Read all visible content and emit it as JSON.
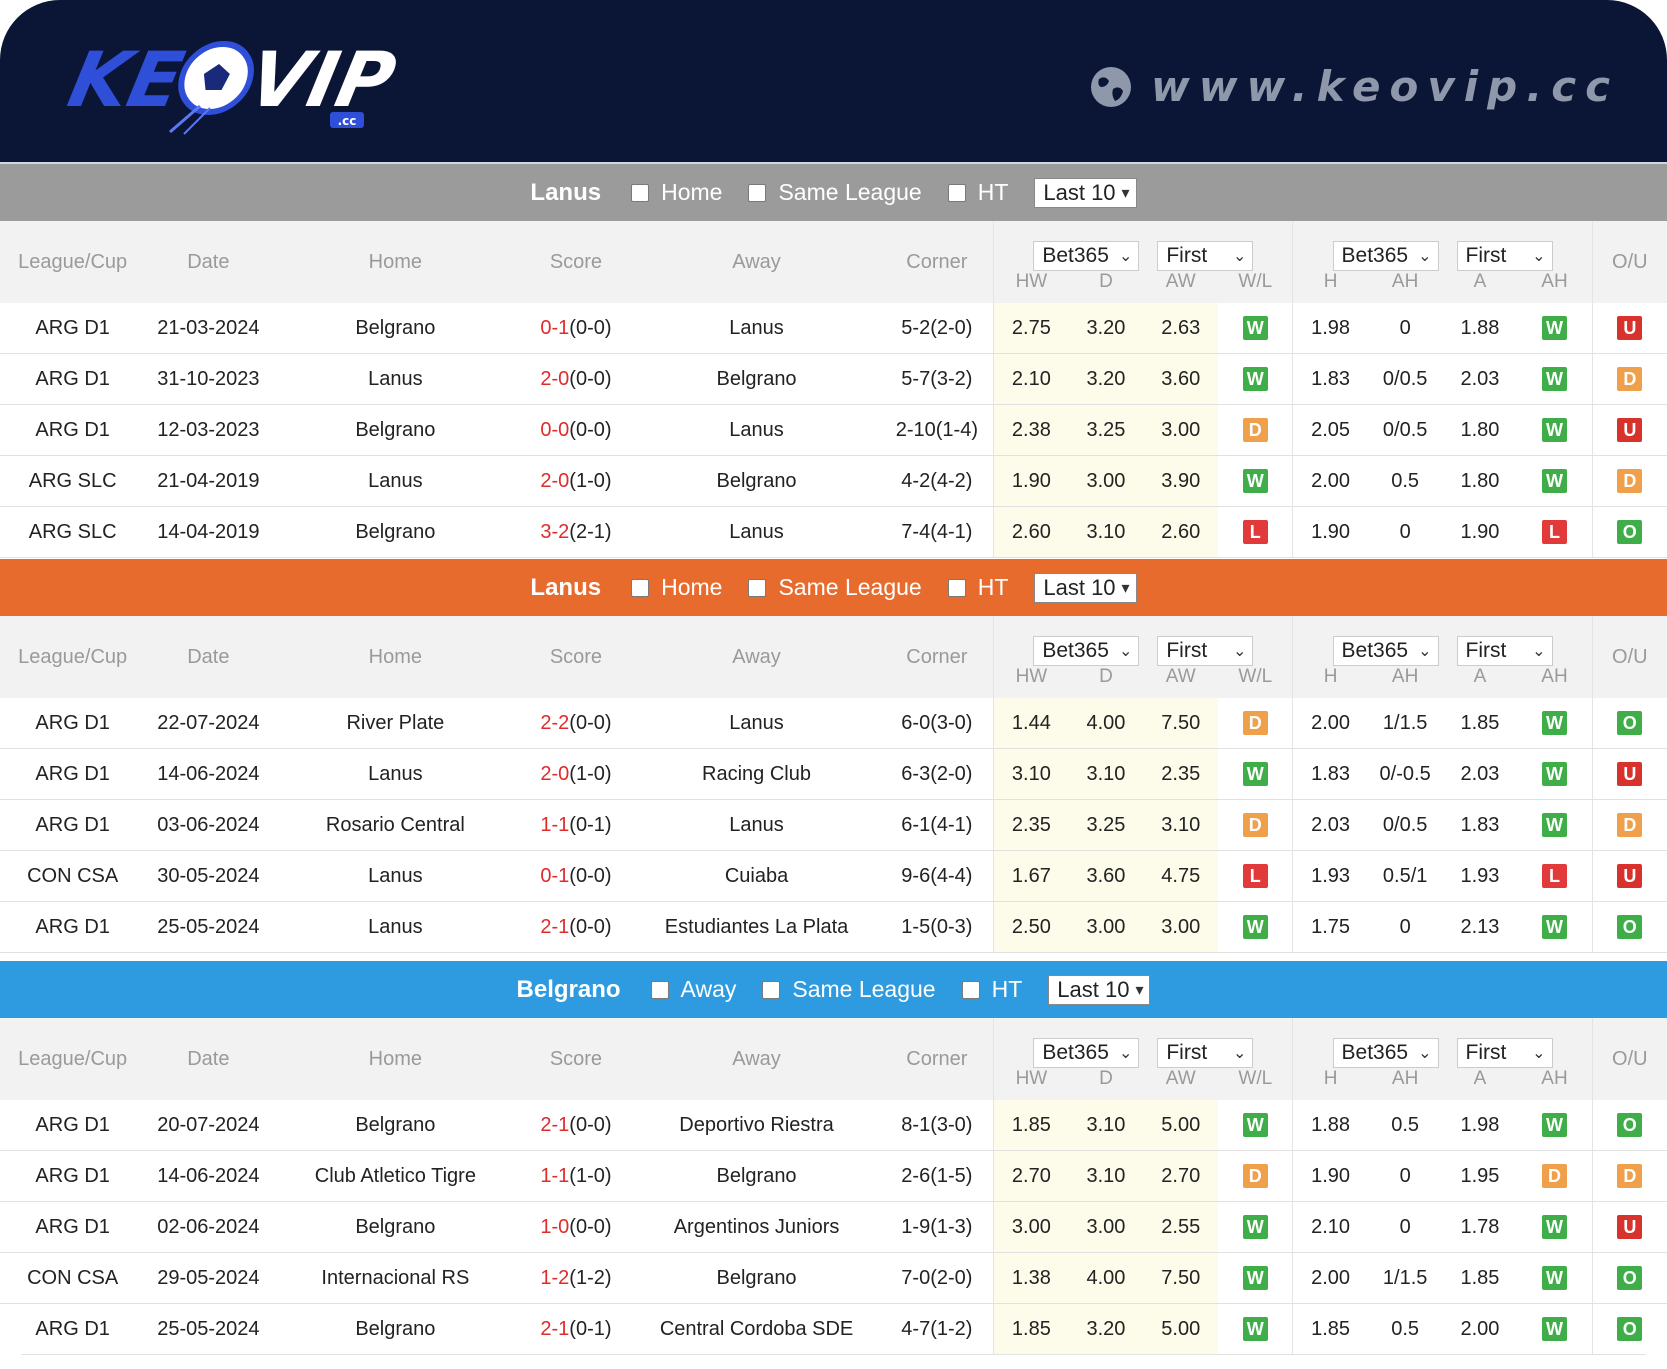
{
  "banner": {
    "logo_text": "KEOVIP",
    "logo_sub": ".cc",
    "site_url": "www.keovip.cc"
  },
  "columns": {
    "league": "League/Cup",
    "date": "Date",
    "home": "Home",
    "score": "Score",
    "away": "Away",
    "corner": "Corner",
    "hw": "HW",
    "d": "D",
    "aw": "AW",
    "wl": "W/L",
    "h": "H",
    "ah": "AH",
    "a": "A",
    "ah2": "AH",
    "ou": "O/U"
  },
  "odds_selects": {
    "bookmaker_1": "Bet365",
    "period_1": "First",
    "bookmaker_2": "Bet365",
    "period_2": "First"
  },
  "sections": [
    {
      "team": "Lanus",
      "filters": [
        "Home",
        "Same League",
        "HT"
      ],
      "last": "Last 10",
      "rows": [
        {
          "league": "ARG D1",
          "date": "21-03-2024",
          "home": "Belgrano",
          "score_ft": "0-1",
          "score_ht": "(0-0)",
          "away": "Lanus",
          "corner": "5-2(2-0)",
          "hw": "2.75",
          "d": "3.20",
          "aw": "2.63",
          "wl": "W",
          "h": "1.98",
          "ah": "0",
          "a": "1.88",
          "ah_res": "W",
          "ou": "U",
          "hl": "away"
        },
        {
          "league": "ARG D1",
          "date": "31-10-2023",
          "home": "Lanus",
          "score_ft": "2-0",
          "score_ht": "(0-0)",
          "away": "Belgrano",
          "corner": "5-7(3-2)",
          "hw": "2.10",
          "d": "3.20",
          "aw": "3.60",
          "wl": "W",
          "h": "1.83",
          "ah": "0/0.5",
          "a": "2.03",
          "ah_res": "W",
          "ou": "D",
          "hl": "home"
        },
        {
          "league": "ARG D1",
          "date": "12-03-2023",
          "home": "Belgrano",
          "score_ft": "0-0",
          "score_ht": "(0-0)",
          "away": "Lanus",
          "corner": "2-10(1-4)",
          "hw": "2.38",
          "d": "3.25",
          "aw": "3.00",
          "wl": "D",
          "h": "2.05",
          "ah": "0/0.5",
          "a": "1.80",
          "ah_res": "W",
          "ou": "U",
          "hl": "away"
        },
        {
          "league": "ARG SLC",
          "date": "21-04-2019",
          "home": "Lanus",
          "score_ft": "2-0",
          "score_ht": "(1-0)",
          "away": "Belgrano",
          "corner": "4-2(4-2)",
          "hw": "1.90",
          "d": "3.00",
          "aw": "3.90",
          "wl": "W",
          "h": "2.00",
          "ah": "0.5",
          "a": "1.80",
          "ah_res": "W",
          "ou": "D",
          "hl": "home"
        },
        {
          "league": "ARG SLC",
          "date": "14-04-2019",
          "home": "Belgrano",
          "score_ft": "3-2",
          "score_ht": "(2-1)",
          "away": "Lanus",
          "corner": "7-4(4-1)",
          "hw": "2.60",
          "d": "3.10",
          "aw": "2.60",
          "wl": "L",
          "h": "1.90",
          "ah": "0",
          "a": "1.90",
          "ah_res": "L",
          "ou": "O",
          "hl": "away"
        }
      ]
    },
    {
      "team": "Lanus",
      "filters": [
        "Home",
        "Same League",
        "HT"
      ],
      "last": "Last 10",
      "rows": [
        {
          "league": "ARG D1",
          "date": "22-07-2024",
          "home": "River Plate",
          "score_ft": "2-2",
          "score_ht": "(0-0)",
          "away": "Lanus",
          "corner": "6-0(3-0)",
          "hw": "1.44",
          "d": "4.00",
          "aw": "7.50",
          "wl": "D",
          "h": "2.00",
          "ah": "1/1.5",
          "a": "1.85",
          "ah_res": "W",
          "ou": "O",
          "hl": "away"
        },
        {
          "league": "ARG D1",
          "date": "14-06-2024",
          "home": "Lanus",
          "score_ft": "2-0",
          "score_ht": "(1-0)",
          "away": "Racing Club",
          "corner": "6-3(2-0)",
          "hw": "3.10",
          "d": "3.10",
          "aw": "2.35",
          "wl": "W",
          "h": "1.83",
          "ah": "0/-0.5",
          "a": "2.03",
          "ah_res": "W",
          "ou": "U",
          "hl": "home"
        },
        {
          "league": "ARG D1",
          "date": "03-06-2024",
          "home": "Rosario Central",
          "score_ft": "1-1",
          "score_ht": "(0-1)",
          "away": "Lanus",
          "corner": "6-1(4-1)",
          "hw": "2.35",
          "d": "3.25",
          "aw": "3.10",
          "wl": "D",
          "h": "2.03",
          "ah": "0/0.5",
          "a": "1.83",
          "ah_res": "W",
          "ou": "D",
          "hl": "away"
        },
        {
          "league": "CON CSA",
          "date": "30-05-2024",
          "home": "Lanus",
          "score_ft": "0-1",
          "score_ht": "(0-0)",
          "away": "Cuiaba",
          "corner": "9-6(4-4)",
          "hw": "1.67",
          "d": "3.60",
          "aw": "4.75",
          "wl": "L",
          "h": "1.93",
          "ah": "0.5/1",
          "a": "1.93",
          "ah_res": "L",
          "ou": "U",
          "hl": "home"
        },
        {
          "league": "ARG D1",
          "date": "25-05-2024",
          "home": "Lanus",
          "score_ft": "2-1",
          "score_ht": "(0-0)",
          "away": "Estudiantes La Plata",
          "corner": "1-5(0-3)",
          "hw": "2.50",
          "d": "3.00",
          "aw": "3.00",
          "wl": "W",
          "h": "1.75",
          "ah": "0",
          "a": "2.13",
          "ah_res": "W",
          "ou": "O",
          "hl": "home"
        }
      ]
    },
    {
      "team": "Belgrano",
      "filters": [
        "Away",
        "Same League",
        "HT"
      ],
      "last": "Last 10",
      "rows": [
        {
          "league": "ARG D1",
          "date": "20-07-2024",
          "home": "Belgrano",
          "score_ft": "2-1",
          "score_ht": "(0-0)",
          "away": "Deportivo Riestra",
          "corner": "8-1(3-0)",
          "hw": "1.85",
          "d": "3.10",
          "aw": "5.00",
          "wl": "W",
          "h": "1.88",
          "ah": "0.5",
          "a": "1.98",
          "ah_res": "W",
          "ou": "O",
          "hl": "home"
        },
        {
          "league": "ARG D1",
          "date": "14-06-2024",
          "home": "Club Atletico Tigre",
          "score_ft": "1-1",
          "score_ht": "(1-0)",
          "away": "Belgrano",
          "corner": "2-6(1-5)",
          "hw": "2.70",
          "d": "3.10",
          "aw": "2.70",
          "wl": "D",
          "h": "1.90",
          "ah": "0",
          "a": "1.95",
          "ah_res": "D",
          "ou": "D",
          "hl": "away"
        },
        {
          "league": "ARG D1",
          "date": "02-06-2024",
          "home": "Belgrano",
          "score_ft": "1-0",
          "score_ht": "(0-0)",
          "away": "Argentinos Juniors",
          "corner": "1-9(1-3)",
          "hw": "3.00",
          "d": "3.00",
          "aw": "2.55",
          "wl": "W",
          "h": "2.10",
          "ah": "0",
          "a": "1.78",
          "ah_res": "W",
          "ou": "U",
          "hl": "home"
        },
        {
          "league": "CON CSA",
          "date": "29-05-2024",
          "home": "Internacional RS",
          "score_ft": "1-2",
          "score_ht": "(1-2)",
          "away": "Belgrano",
          "corner": "7-0(2-0)",
          "hw": "1.38",
          "d": "4.00",
          "aw": "7.50",
          "wl": "W",
          "h": "2.00",
          "ah": "1/1.5",
          "a": "1.85",
          "ah_res": "W",
          "ou": "O",
          "hl": "away"
        },
        {
          "league": "ARG D1",
          "date": "25-05-2024",
          "home": "Belgrano",
          "score_ft": "2-1",
          "score_ht": "(0-1)",
          "away": "Central Cordoba SDE",
          "corner": "4-7(1-2)",
          "hw": "1.85",
          "d": "3.20",
          "aw": "5.00",
          "wl": "W",
          "h": "1.85",
          "ah": "0.5",
          "a": "2.00",
          "ah_res": "W",
          "ou": "O",
          "hl": "home"
        }
      ]
    }
  ]
}
